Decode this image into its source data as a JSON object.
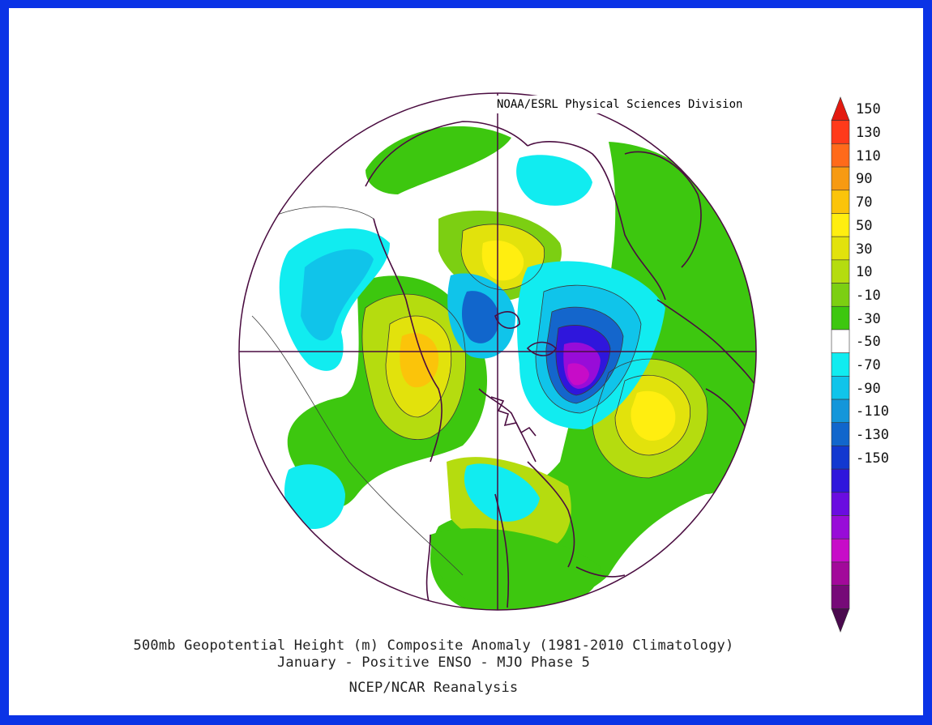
{
  "credit": "NOAA/ESRL Physical Sciences Division",
  "captions": {
    "line1": "500mb Geopotential Height (m) Composite Anomaly (1981-2010 Climatology)",
    "line2": "January - Positive ENSO - MJO Phase 5",
    "line3": "NCEP/NCAR Reanalysis"
  },
  "colorbar": {
    "labels": [
      "150",
      "130",
      "110",
      "90",
      "70",
      "50",
      "30",
      "10",
      "-10",
      "-30",
      "-50",
      "-70",
      "-90",
      "-110",
      "-130",
      "-150"
    ],
    "colors": [
      "#e31a10",
      "#ff3a1a",
      "#ff6a1a",
      "#f79a12",
      "#fbc40a",
      "#ffee10",
      "#e2e20c",
      "#b5dc0f",
      "#7ccf12",
      "#3dc70f",
      "#ffffff",
      "#11ecf0",
      "#10c4ea",
      "#1496da",
      "#1166cc",
      "#1238d0",
      "#2f16dc",
      "#6a0ce0",
      "#980cd8",
      "#c70cc8",
      "#a2099a",
      "#760a78",
      "#4a0a4e"
    ]
  },
  "colors": {
    "border": "#0b33e6",
    "coastline": "#4a0c40"
  }
}
